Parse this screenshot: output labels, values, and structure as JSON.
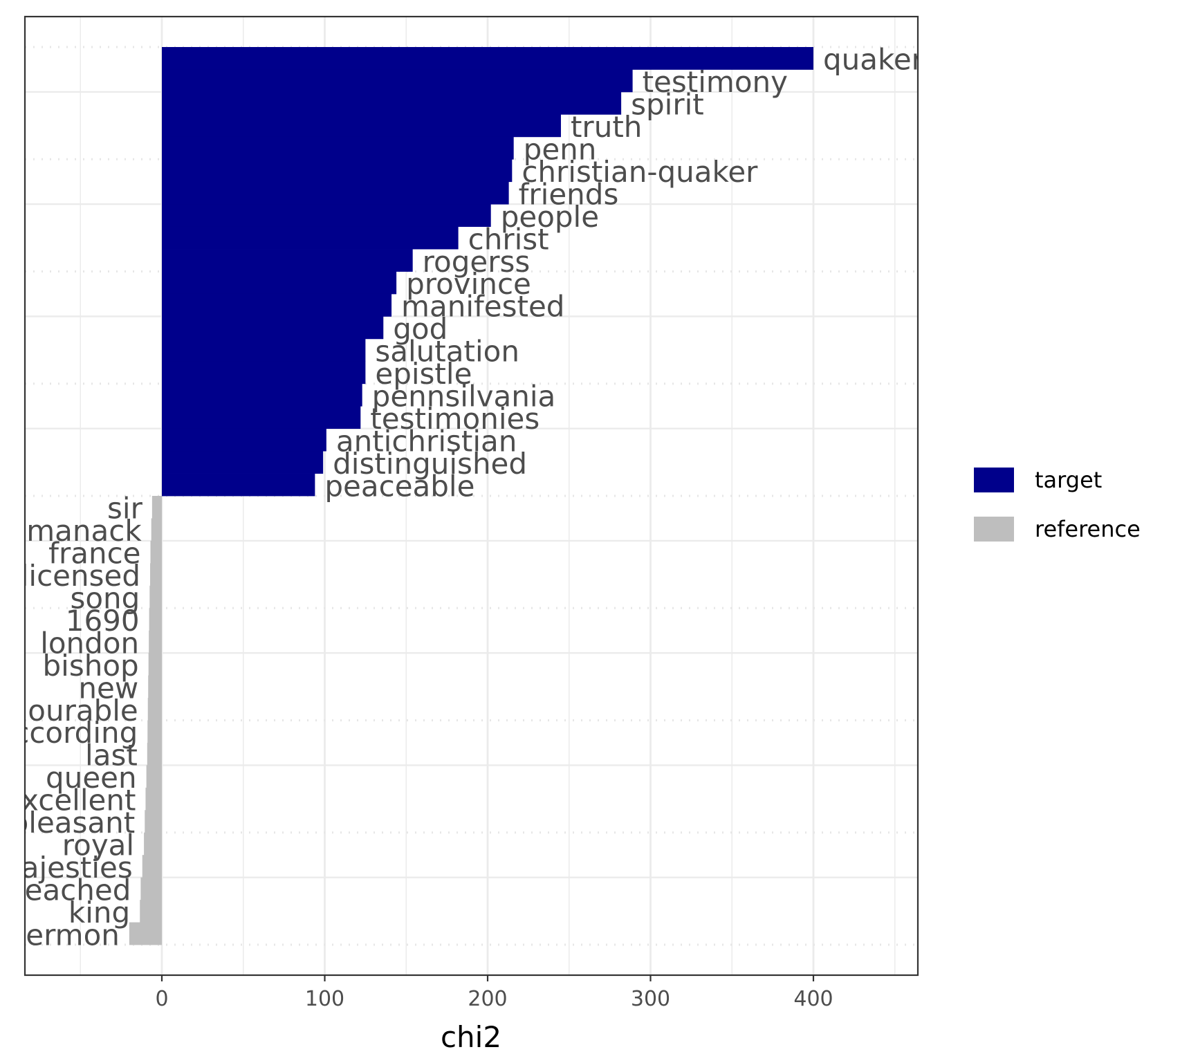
{
  "chart_data": {
    "type": "bar",
    "orientation": "horizontal",
    "xlabel": "chi2",
    "xlim": [
      -85,
      465
    ],
    "xticks": [
      0,
      100,
      200,
      300,
      400
    ],
    "grid": true,
    "legend_position": "right",
    "legend": [
      {
        "key": "target",
        "label": "target",
        "color": "#00008B"
      },
      {
        "key": "reference",
        "label": "reference",
        "color": "#BEBEBE"
      }
    ],
    "bars": [
      {
        "term": "quaker",
        "value": 400,
        "group": "target"
      },
      {
        "term": "testimony",
        "value": 289,
        "group": "target"
      },
      {
        "term": "spirit",
        "value": 282,
        "group": "target"
      },
      {
        "term": "truth",
        "value": 245,
        "group": "target"
      },
      {
        "term": "penn",
        "value": 216,
        "group": "target"
      },
      {
        "term": "christian-quaker",
        "value": 215,
        "group": "target"
      },
      {
        "term": "friends",
        "value": 213,
        "group": "target"
      },
      {
        "term": "people",
        "value": 202,
        "group": "target"
      },
      {
        "term": "christ",
        "value": 182,
        "group": "target"
      },
      {
        "term": "rogerss",
        "value": 154,
        "group": "target"
      },
      {
        "term": "province",
        "value": 144,
        "group": "target"
      },
      {
        "term": "manifested",
        "value": 141,
        "group": "target"
      },
      {
        "term": "god",
        "value": 136,
        "group": "target"
      },
      {
        "term": "salutation",
        "value": 125,
        "group": "target"
      },
      {
        "term": "epistle",
        "value": 125,
        "group": "target"
      },
      {
        "term": "pennsilvania",
        "value": 123,
        "group": "target"
      },
      {
        "term": "testimonies",
        "value": 122,
        "group": "target"
      },
      {
        "term": "antichristian",
        "value": 101,
        "group": "target"
      },
      {
        "term": "distinguished",
        "value": 99,
        "group": "target"
      },
      {
        "term": "peaceable",
        "value": 94,
        "group": "target"
      },
      {
        "term": "sir",
        "value": -6,
        "group": "reference"
      },
      {
        "term": "almanack",
        "value": -6.5,
        "group": "reference"
      },
      {
        "term": "france",
        "value": -7,
        "group": "reference"
      },
      {
        "term": "licensed",
        "value": -7.2,
        "group": "reference"
      },
      {
        "term": "song",
        "value": -7.5,
        "group": "reference"
      },
      {
        "term": "1690",
        "value": -7.8,
        "group": "reference"
      },
      {
        "term": "london",
        "value": -8,
        "group": "reference"
      },
      {
        "term": "bishop",
        "value": -8.2,
        "group": "reference"
      },
      {
        "term": "new",
        "value": -8.4,
        "group": "reference"
      },
      {
        "term": "honourable",
        "value": -8.6,
        "group": "reference"
      },
      {
        "term": "according",
        "value": -8.8,
        "group": "reference"
      },
      {
        "term": "last",
        "value": -9,
        "group": "reference"
      },
      {
        "term": "queen",
        "value": -9.5,
        "group": "reference"
      },
      {
        "term": "excellent",
        "value": -10,
        "group": "reference"
      },
      {
        "term": "pleasant",
        "value": -10.5,
        "group": "reference"
      },
      {
        "term": "royal",
        "value": -11,
        "group": "reference"
      },
      {
        "term": "majesties",
        "value": -12,
        "group": "reference"
      },
      {
        "term": "preached",
        "value": -13,
        "group": "reference"
      },
      {
        "term": "king",
        "value": -13.5,
        "group": "reference"
      },
      {
        "term": "sermon",
        "value": -20,
        "group": "reference"
      }
    ]
  }
}
